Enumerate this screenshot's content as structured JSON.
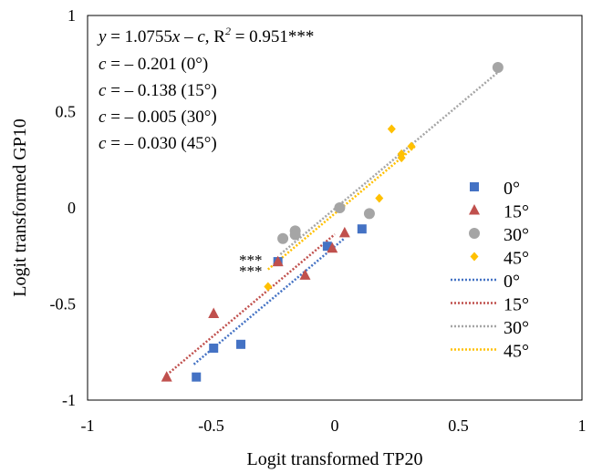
{
  "chart_data": {
    "type": "scatter",
    "xlabel": "Logit transformed TP20",
    "ylabel": "Logit transformed GP10",
    "xlim": [
      -1,
      1
    ],
    "ylim": [
      -1,
      1
    ],
    "xticks": [
      "-1",
      "-0.5",
      "0",
      "0.5",
      "1"
    ],
    "yticks": [
      "-1",
      "-0.5",
      "0",
      "0.5",
      "1"
    ],
    "grid": false,
    "legend_position": "right",
    "annotations": {
      "equation": "y = 1.0755x – c, R² = 0.951***",
      "eq_y": "y",
      "eq_mid": " = 1.0755",
      "eq_x": "x",
      "eq_minus": " – ",
      "eq_c": "c",
      "eq_r": ", R",
      "eq_sup": "2",
      "eq_tail": " = 0.951***",
      "c_lines": [
        {
          "c": "c",
          "text": " = – 0.201 (0°)"
        },
        {
          "c": "c",
          "text": " = – 0.138 (15°)"
        },
        {
          "c": "c",
          "text": " = – 0.005 (30°)"
        },
        {
          "c": "c",
          "text": " = – 0.030 (45°)"
        }
      ],
      "significance": [
        "***",
        "***"
      ]
    },
    "slope": 1.0755,
    "series": [
      {
        "name": "0°",
        "marker": "square",
        "color": "#4472C4",
        "points": [
          [
            -0.56,
            -0.88
          ],
          [
            -0.49,
            -0.73
          ],
          [
            -0.38,
            -0.71
          ],
          [
            -0.23,
            -0.28
          ],
          [
            -0.03,
            -0.2
          ],
          [
            0.11,
            -0.11
          ]
        ]
      },
      {
        "name": "15°",
        "marker": "triangle",
        "color": "#C0504D",
        "points": [
          [
            -0.68,
            -0.88
          ],
          [
            -0.49,
            -0.55
          ],
          [
            -0.23,
            -0.28
          ],
          [
            -0.12,
            -0.35
          ],
          [
            -0.01,
            -0.21
          ],
          [
            0.04,
            -0.13
          ]
        ]
      },
      {
        "name": "30°",
        "marker": "circle",
        "color": "#A5A5A5",
        "points": [
          [
            -0.21,
            -0.16
          ],
          [
            -0.16,
            -0.12
          ],
          [
            -0.16,
            -0.14
          ],
          [
            0.02,
            0.0
          ],
          [
            0.14,
            -0.03
          ],
          [
            0.66,
            0.73
          ]
        ]
      },
      {
        "name": "45°",
        "marker": "diamond",
        "color": "#FFC000",
        "points": [
          [
            -0.27,
            -0.41
          ],
          [
            0.18,
            0.05
          ],
          [
            0.23,
            0.41
          ],
          [
            0.27,
            0.26
          ],
          [
            0.27,
            0.28
          ],
          [
            0.31,
            0.32
          ]
        ]
      }
    ],
    "trendlines": [
      {
        "name": "0°",
        "color": "#4472C4",
        "x": [
          -0.57,
          0.04
        ],
        "c": -0.201
      },
      {
        "name": "15°",
        "color": "#C0504D",
        "x": [
          -0.68,
          0.0
        ],
        "c": -0.138
      },
      {
        "name": "30°",
        "color": "#A5A5A5",
        "x": [
          -0.22,
          0.66
        ],
        "c": -0.005
      },
      {
        "name": "45°",
        "color": "#FFC000",
        "x": [
          -0.27,
          0.33
        ],
        "c": -0.03
      }
    ]
  }
}
